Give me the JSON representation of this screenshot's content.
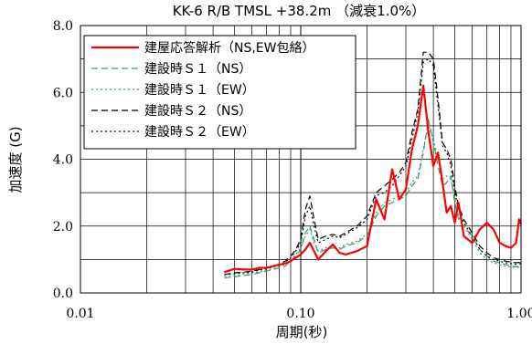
{
  "chart_data": {
    "type": "line",
    "title": "KK-6 R/B TMSL +38.2m （減衰1.0%）",
    "xlabel": "周期(秒)",
    "ylabel": "加速度 (G)",
    "x_scale": "log",
    "xlim": [
      0.01,
      1.0
    ],
    "ylim": [
      0,
      8
    ],
    "x_ticks": [
      0.01,
      0.1,
      1.0
    ],
    "x_tick_labels": [
      "0.01",
      "0.10",
      "1.00"
    ],
    "y_ticks": [
      0,
      2,
      4,
      6,
      8
    ],
    "y_tick_labels": [
      "0.0",
      "2.0",
      "4.0",
      "6.0",
      "8.0"
    ],
    "grid": true,
    "legend_position": "top-left",
    "series": [
      {
        "name": "建屋応答解析（NS,EW包絡）",
        "color": "#ff0000",
        "style": "solid",
        "width": 2.2,
        "x": [
          0.045,
          0.05,
          0.055,
          0.06,
          0.065,
          0.07,
          0.075,
          0.08,
          0.085,
          0.09,
          0.095,
          0.1,
          0.105,
          0.11,
          0.115,
          0.12,
          0.13,
          0.14,
          0.15,
          0.16,
          0.18,
          0.2,
          0.22,
          0.24,
          0.26,
          0.28,
          0.3,
          0.32,
          0.34,
          0.36,
          0.38,
          0.4,
          0.42,
          0.44,
          0.46,
          0.48,
          0.5,
          0.52,
          0.55,
          0.6,
          0.65,
          0.7,
          0.75,
          0.8,
          0.85,
          0.9,
          0.95,
          0.98,
          1.0
        ],
        "y": [
          0.62,
          0.72,
          0.7,
          0.7,
          0.75,
          0.75,
          0.8,
          0.85,
          0.88,
          0.95,
          1.05,
          1.15,
          1.3,
          1.5,
          1.25,
          1.0,
          1.25,
          1.45,
          1.2,
          1.15,
          1.25,
          1.4,
          2.8,
          2.2,
          3.7,
          2.8,
          3.1,
          4.3,
          5.0,
          6.2,
          4.8,
          3.8,
          4.2,
          3.3,
          2.4,
          2.6,
          2.1,
          2.7,
          1.7,
          1.5,
          1.9,
          2.1,
          1.9,
          1.5,
          1.4,
          1.35,
          1.5,
          2.2,
          2.05
        ]
      },
      {
        "name": "建設時Ｓ１（NS）",
        "color": "#3a9a6a",
        "style": "dashed",
        "width": 1.2,
        "x": [
          0.045,
          0.05,
          0.055,
          0.06,
          0.065,
          0.07,
          0.075,
          0.08,
          0.085,
          0.09,
          0.095,
          0.1,
          0.105,
          0.11,
          0.115,
          0.12,
          0.13,
          0.14,
          0.15,
          0.16,
          0.18,
          0.2,
          0.22,
          0.24,
          0.26,
          0.28,
          0.3,
          0.32,
          0.34,
          0.36,
          0.38,
          0.4,
          0.42,
          0.44,
          0.46,
          0.48,
          0.5,
          0.52,
          0.55,
          0.6,
          0.65,
          0.7,
          0.75,
          0.8,
          0.85,
          0.9,
          0.95,
          1.0
        ],
        "y": [
          0.45,
          0.48,
          0.52,
          0.55,
          0.6,
          0.65,
          0.7,
          0.75,
          0.8,
          0.95,
          1.1,
          1.3,
          1.8,
          2.0,
          1.6,
          1.2,
          1.3,
          1.35,
          1.3,
          1.4,
          1.5,
          1.7,
          2.3,
          2.6,
          2.7,
          2.8,
          2.9,
          3.2,
          3.4,
          4.2,
          5.2,
          4.5,
          3.8,
          3.2,
          3.3,
          3.5,
          2.7,
          2.2,
          2.0,
          1.7,
          1.3,
          1.1,
          0.95,
          0.9,
          0.85,
          0.8,
          0.78,
          0.8
        ]
      },
      {
        "name": "建設時Ｓ１（EW）",
        "color": "#3a9a6a",
        "style": "dotted",
        "width": 1.2,
        "x": [
          0.045,
          0.05,
          0.055,
          0.06,
          0.065,
          0.07,
          0.075,
          0.08,
          0.085,
          0.09,
          0.095,
          0.1,
          0.105,
          0.11,
          0.115,
          0.12,
          0.13,
          0.14,
          0.15,
          0.16,
          0.18,
          0.2,
          0.22,
          0.24,
          0.26,
          0.28,
          0.3,
          0.32,
          0.34,
          0.36,
          0.38,
          0.4,
          0.42,
          0.44,
          0.46,
          0.48,
          0.5,
          0.52,
          0.55,
          0.6,
          0.65,
          0.7,
          0.75,
          0.8,
          0.85,
          0.9,
          0.95,
          1.0
        ],
        "y": [
          0.5,
          0.52,
          0.55,
          0.6,
          0.62,
          0.68,
          0.72,
          0.78,
          0.85,
          1.0,
          1.15,
          1.35,
          1.7,
          1.9,
          1.5,
          1.25,
          1.35,
          1.4,
          1.35,
          1.45,
          1.55,
          1.75,
          2.4,
          2.7,
          2.8,
          2.9,
          3.0,
          3.3,
          3.5,
          4.3,
          5.0,
          4.6,
          4.0,
          3.4,
          3.5,
          3.4,
          2.8,
          2.3,
          2.0,
          1.6,
          1.2,
          1.0,
          0.9,
          0.85,
          0.8,
          0.78,
          0.75,
          0.78
        ]
      },
      {
        "name": "建設時Ｓ２（NS）",
        "color": "#000000",
        "style": "dashed",
        "width": 1.2,
        "x": [
          0.045,
          0.05,
          0.055,
          0.06,
          0.065,
          0.07,
          0.075,
          0.08,
          0.085,
          0.09,
          0.095,
          0.1,
          0.105,
          0.11,
          0.115,
          0.12,
          0.13,
          0.14,
          0.15,
          0.16,
          0.18,
          0.2,
          0.22,
          0.24,
          0.26,
          0.28,
          0.3,
          0.32,
          0.34,
          0.36,
          0.38,
          0.4,
          0.42,
          0.44,
          0.46,
          0.48,
          0.5,
          0.52,
          0.55,
          0.6,
          0.65,
          0.7,
          0.75,
          0.8,
          0.85,
          0.9,
          0.95,
          1.0
        ],
        "y": [
          0.55,
          0.6,
          0.62,
          0.65,
          0.7,
          0.75,
          0.78,
          0.85,
          0.95,
          1.1,
          1.3,
          1.6,
          2.5,
          2.9,
          2.2,
          1.6,
          1.7,
          1.75,
          1.7,
          1.8,
          2.0,
          2.3,
          3.0,
          3.2,
          3.4,
          3.6,
          3.9,
          4.8,
          5.5,
          7.2,
          7.2,
          7.0,
          5.8,
          4.5,
          4.3,
          4.0,
          3.2,
          2.6,
          2.2,
          1.8,
          1.4,
          1.2,
          1.05,
          1.0,
          0.95,
          0.92,
          0.9,
          0.92
        ]
      },
      {
        "name": "建設時Ｓ２（EW）",
        "color": "#000000",
        "style": "dotted",
        "width": 1.2,
        "x": [
          0.045,
          0.05,
          0.055,
          0.06,
          0.065,
          0.07,
          0.075,
          0.08,
          0.085,
          0.09,
          0.095,
          0.1,
          0.105,
          0.11,
          0.115,
          0.12,
          0.13,
          0.14,
          0.15,
          0.16,
          0.18,
          0.2,
          0.22,
          0.24,
          0.26,
          0.28,
          0.3,
          0.32,
          0.34,
          0.36,
          0.38,
          0.4,
          0.42,
          0.44,
          0.46,
          0.48,
          0.5,
          0.52,
          0.55,
          0.6,
          0.65,
          0.7,
          0.75,
          0.8,
          0.85,
          0.9,
          0.95,
          1.0
        ],
        "y": [
          0.55,
          0.58,
          0.6,
          0.62,
          0.68,
          0.72,
          0.78,
          0.82,
          0.92,
          1.05,
          1.25,
          1.5,
          2.3,
          2.6,
          2.0,
          1.5,
          1.6,
          1.7,
          1.65,
          1.75,
          1.95,
          2.2,
          2.9,
          3.0,
          3.2,
          3.5,
          3.8,
          4.6,
          5.4,
          6.9,
          7.0,
          6.8,
          5.6,
          4.4,
          4.2,
          3.8,
          3.0,
          2.5,
          2.1,
          1.7,
          1.3,
          1.1,
          1.0,
          0.95,
          0.9,
          0.88,
          0.85,
          0.88
        ]
      }
    ]
  }
}
